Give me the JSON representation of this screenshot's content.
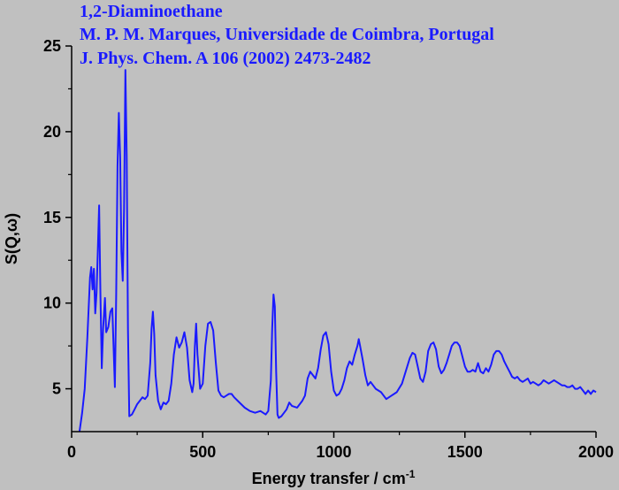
{
  "chart_data": {
    "type": "line",
    "title_lines": [
      "1,2-Diaminoethane",
      "M. P. M. Marques, Universidade de Coimbra, Portugal",
      "J. Phys. Chem. A 106 (2002) 2473-2482"
    ],
    "xlabel": "Energy transfer / cm",
    "xlabel_sup": "-1",
    "ylabel": "S(Q,ω)",
    "xlim": [
      0,
      2000
    ],
    "ylim": [
      2.5,
      25
    ],
    "xticks": [
      0,
      500,
      1000,
      1500,
      2000
    ],
    "yticks": [
      5,
      10,
      15,
      20,
      25
    ],
    "grid": false,
    "colors": {
      "line": "#1a1aff",
      "title": "#1a1aff",
      "background": "#c0c0c0"
    },
    "series": [
      {
        "values": [
          [
            30,
            2.5
          ],
          [
            40,
            3.6
          ],
          [
            50,
            5.0
          ],
          [
            60,
            8.0
          ],
          [
            70,
            11.5
          ],
          [
            75,
            12.1
          ],
          [
            80,
            10.8
          ],
          [
            85,
            12.0
          ],
          [
            90,
            9.4
          ],
          [
            95,
            10.6
          ],
          [
            100,
            13.2
          ],
          [
            105,
            15.7
          ],
          [
            110,
            10.4
          ],
          [
            115,
            6.2
          ],
          [
            120,
            8.5
          ],
          [
            127,
            10.3
          ],
          [
            132,
            8.3
          ],
          [
            140,
            8.6
          ],
          [
            148,
            9.5
          ],
          [
            155,
            9.7
          ],
          [
            160,
            7.5
          ],
          [
            165,
            5.1
          ],
          [
            170,
            10.5
          ],
          [
            175,
            18.0
          ],
          [
            180,
            21.1
          ],
          [
            185,
            18.5
          ],
          [
            190,
            13.0
          ],
          [
            195,
            11.3
          ],
          [
            200,
            15.5
          ],
          [
            205,
            23.6
          ],
          [
            210,
            18.5
          ],
          [
            215,
            8.5
          ],
          [
            220,
            3.4
          ],
          [
            230,
            3.5
          ],
          [
            240,
            3.8
          ],
          [
            250,
            4.1
          ],
          [
            260,
            4.3
          ],
          [
            270,
            4.5
          ],
          [
            280,
            4.4
          ],
          [
            290,
            4.6
          ],
          [
            300,
            6.5
          ],
          [
            305,
            8.5
          ],
          [
            310,
            9.5
          ],
          [
            315,
            8.2
          ],
          [
            320,
            5.8
          ],
          [
            330,
            4.3
          ],
          [
            340,
            3.8
          ],
          [
            350,
            4.2
          ],
          [
            360,
            4.1
          ],
          [
            370,
            4.3
          ],
          [
            380,
            5.3
          ],
          [
            390,
            7.0
          ],
          [
            400,
            8.0
          ],
          [
            410,
            7.4
          ],
          [
            420,
            7.7
          ],
          [
            430,
            8.3
          ],
          [
            440,
            7.4
          ],
          [
            450,
            5.5
          ],
          [
            460,
            4.8
          ],
          [
            465,
            5.3
          ],
          [
            470,
            7.5
          ],
          [
            475,
            8.8
          ],
          [
            480,
            7.0
          ],
          [
            490,
            5.0
          ],
          [
            500,
            5.3
          ],
          [
            510,
            7.5
          ],
          [
            520,
            8.8
          ],
          [
            530,
            8.9
          ],
          [
            540,
            8.4
          ],
          [
            550,
            6.5
          ],
          [
            560,
            4.9
          ],
          [
            570,
            4.6
          ],
          [
            580,
            4.5
          ],
          [
            590,
            4.6
          ],
          [
            600,
            4.7
          ],
          [
            610,
            4.7
          ],
          [
            620,
            4.5
          ],
          [
            640,
            4.2
          ],
          [
            660,
            3.9
          ],
          [
            680,
            3.7
          ],
          [
            700,
            3.6
          ],
          [
            720,
            3.7
          ],
          [
            740,
            3.5
          ],
          [
            750,
            3.7
          ],
          [
            760,
            5.5
          ],
          [
            765,
            8.5
          ],
          [
            770,
            10.5
          ],
          [
            775,
            9.8
          ],
          [
            780,
            6.0
          ],
          [
            785,
            3.5
          ],
          [
            790,
            3.3
          ],
          [
            800,
            3.4
          ],
          [
            810,
            3.6
          ],
          [
            820,
            3.8
          ],
          [
            830,
            4.2
          ],
          [
            840,
            4.0
          ],
          [
            860,
            3.9
          ],
          [
            880,
            4.3
          ],
          [
            890,
            4.6
          ],
          [
            900,
            5.6
          ],
          [
            910,
            6.0
          ],
          [
            920,
            5.8
          ],
          [
            930,
            5.6
          ],
          [
            940,
            6.2
          ],
          [
            950,
            7.3
          ],
          [
            960,
            8.1
          ],
          [
            970,
            8.3
          ],
          [
            980,
            7.6
          ],
          [
            990,
            6.0
          ],
          [
            1000,
            4.9
          ],
          [
            1010,
            4.6
          ],
          [
            1020,
            4.7
          ],
          [
            1030,
            5.0
          ],
          [
            1040,
            5.5
          ],
          [
            1050,
            6.2
          ],
          [
            1060,
            6.6
          ],
          [
            1070,
            6.4
          ],
          [
            1080,
            7.0
          ],
          [
            1090,
            7.5
          ],
          [
            1095,
            7.9
          ],
          [
            1100,
            7.5
          ],
          [
            1110,
            6.7
          ],
          [
            1120,
            5.8
          ],
          [
            1130,
            5.2
          ],
          [
            1140,
            5.4
          ],
          [
            1160,
            5.0
          ],
          [
            1180,
            4.8
          ],
          [
            1200,
            4.4
          ],
          [
            1220,
            4.6
          ],
          [
            1240,
            4.8
          ],
          [
            1260,
            5.3
          ],
          [
            1280,
            6.3
          ],
          [
            1290,
            6.8
          ],
          [
            1300,
            7.1
          ],
          [
            1310,
            7.0
          ],
          [
            1320,
            6.3
          ],
          [
            1330,
            5.6
          ],
          [
            1340,
            5.4
          ],
          [
            1350,
            6.0
          ],
          [
            1360,
            7.2
          ],
          [
            1370,
            7.6
          ],
          [
            1380,
            7.7
          ],
          [
            1390,
            7.3
          ],
          [
            1400,
            6.3
          ],
          [
            1410,
            5.9
          ],
          [
            1420,
            6.1
          ],
          [
            1430,
            6.5
          ],
          [
            1440,
            7.0
          ],
          [
            1450,
            7.5
          ],
          [
            1460,
            7.7
          ],
          [
            1470,
            7.7
          ],
          [
            1480,
            7.5
          ],
          [
            1490,
            6.9
          ],
          [
            1500,
            6.3
          ],
          [
            1510,
            6.0
          ],
          [
            1520,
            6.0
          ],
          [
            1530,
            6.1
          ],
          [
            1540,
            6.0
          ],
          [
            1550,
            6.5
          ],
          [
            1560,
            6.0
          ],
          [
            1570,
            5.9
          ],
          [
            1580,
            6.2
          ],
          [
            1590,
            6.0
          ],
          [
            1600,
            6.4
          ],
          [
            1610,
            7.0
          ],
          [
            1620,
            7.2
          ],
          [
            1630,
            7.2
          ],
          [
            1640,
            7.0
          ],
          [
            1650,
            6.6
          ],
          [
            1660,
            6.3
          ],
          [
            1670,
            6.0
          ],
          [
            1680,
            5.7
          ],
          [
            1690,
            5.6
          ],
          [
            1700,
            5.7
          ],
          [
            1710,
            5.5
          ],
          [
            1720,
            5.4
          ],
          [
            1730,
            5.5
          ],
          [
            1740,
            5.6
          ],
          [
            1750,
            5.3
          ],
          [
            1760,
            5.4
          ],
          [
            1770,
            5.3
          ],
          [
            1780,
            5.2
          ],
          [
            1790,
            5.3
          ],
          [
            1800,
            5.5
          ],
          [
            1810,
            5.4
          ],
          [
            1820,
            5.3
          ],
          [
            1830,
            5.4
          ],
          [
            1840,
            5.5
          ],
          [
            1850,
            5.4
          ],
          [
            1860,
            5.3
          ],
          [
            1870,
            5.2
          ],
          [
            1880,
            5.2
          ],
          [
            1890,
            5.1
          ],
          [
            1900,
            5.1
          ],
          [
            1910,
            5.2
          ],
          [
            1920,
            5.0
          ],
          [
            1930,
            5.0
          ],
          [
            1940,
            5.1
          ],
          [
            1950,
            4.9
          ],
          [
            1960,
            4.7
          ],
          [
            1970,
            4.9
          ],
          [
            1980,
            4.7
          ],
          [
            1990,
            4.9
          ],
          [
            2000,
            4.8
          ]
        ]
      }
    ]
  }
}
